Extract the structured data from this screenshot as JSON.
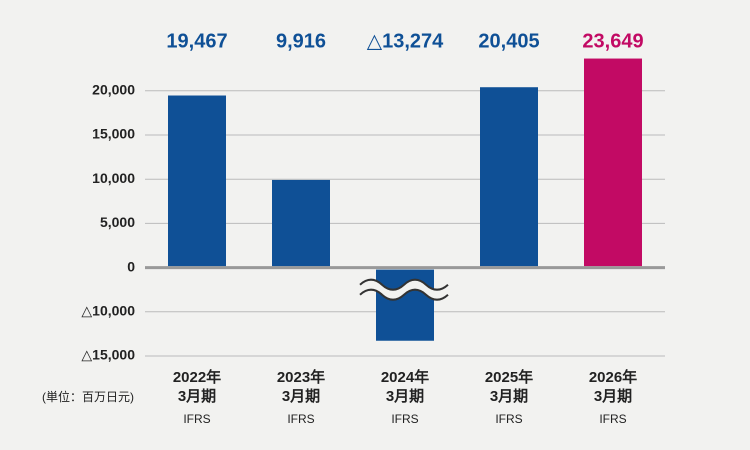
{
  "chart_data": {
    "type": "bar",
    "categories": [
      [
        "2022年",
        "3月期",
        "IFRS"
      ],
      [
        "2023年",
        "3月期",
        "IFRS"
      ],
      [
        "2024年",
        "3月期",
        "IFRS"
      ],
      [
        "2025年",
        "3月期",
        "IFRS"
      ],
      [
        "2026年",
        "3月期",
        "IFRS"
      ]
    ],
    "values": [
      19467,
      9916,
      -13274,
      20405,
      23649
    ],
    "value_labels": [
      "19,467",
      "9,916",
      "△13,274",
      "20,405",
      "23,649"
    ],
    "colors": [
      "#0f5096",
      "#0f5096",
      "#0f5096",
      "#0f5096",
      "#c20a64"
    ],
    "ylim": [
      -15000,
      25000
    ],
    "yticks": [
      {
        "value": -15000,
        "label": "△15,000"
      },
      {
        "value": -10000,
        "label": "△10,000"
      },
      0,
      {
        "value": 5000,
        "label": "5,000"
      },
      {
        "value": 10000,
        "label": "10,000"
      },
      {
        "value": 15000,
        "label": "15,000"
      },
      {
        "value": 20000,
        "label": "20,000"
      }
    ],
    "axis_break": true,
    "grid": true,
    "unit_label": "(単位：百万日元)"
  }
}
